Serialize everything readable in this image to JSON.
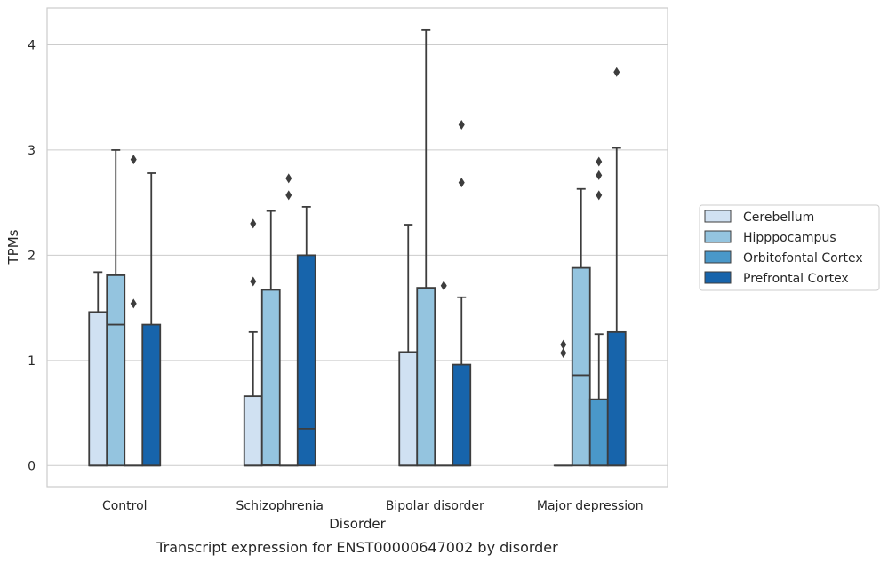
{
  "chart_data": {
    "type": "boxplot",
    "caption": "Transcript expression for ENST00000647002 by disorder",
    "xlabel": "Disorder",
    "ylabel": "TPMs",
    "ylim": [
      -0.2,
      4.35
    ],
    "yticks": [
      0,
      1,
      2,
      3,
      4
    ],
    "categories": [
      "Control",
      "Schizophrenia",
      "Bipolar disorder",
      "Major depression"
    ],
    "legend_position": "right",
    "grid": "horizontal",
    "series": [
      {
        "name": "Cerebellum",
        "color": "#d0e1f2",
        "boxes": [
          {
            "q1": 0,
            "median": 0,
            "q3": 1.46,
            "whisker_low": 0,
            "whisker_high": 1.84,
            "outliers": []
          },
          {
            "q1": 0,
            "median": 0,
            "q3": 0.66,
            "whisker_low": 0,
            "whisker_high": 1.27,
            "outliers": [
              1.75,
              2.3
            ]
          },
          {
            "q1": 0,
            "median": 0,
            "q3": 1.08,
            "whisker_low": 0,
            "whisker_high": 2.29,
            "outliers": []
          },
          {
            "q1": 0,
            "median": 0,
            "q3": 0,
            "whisker_low": 0,
            "whisker_high": 0,
            "outliers": [
              1.07,
              1.15
            ]
          }
        ]
      },
      {
        "name": "Hipppocampus",
        "color": "#94c4df",
        "boxes": [
          {
            "q1": 0,
            "median": 1.34,
            "q3": 1.81,
            "whisker_low": 0,
            "whisker_high": 3.0,
            "outliers": []
          },
          {
            "q1": 0,
            "median": 0.01,
            "q3": 1.67,
            "whisker_low": 0,
            "whisker_high": 2.42,
            "outliers": []
          },
          {
            "q1": 0,
            "median": 0,
            "q3": 1.69,
            "whisker_low": 0,
            "whisker_high": 4.14,
            "outliers": []
          },
          {
            "q1": 0,
            "median": 0.86,
            "q3": 1.88,
            "whisker_low": 0,
            "whisker_high": 2.63,
            "outliers": []
          }
        ]
      },
      {
        "name": "Orbitofontal Cortex",
        "color": "#4a98c9",
        "boxes": [
          {
            "q1": 0,
            "median": 0,
            "q3": 0,
            "whisker_low": 0,
            "whisker_high": 0,
            "outliers": [
              1.54,
              2.91
            ]
          },
          {
            "q1": 0,
            "median": 0,
            "q3": 0,
            "whisker_low": 0,
            "whisker_high": 0,
            "outliers": [
              2.57,
              2.73
            ]
          },
          {
            "q1": 0,
            "median": 0,
            "q3": 0,
            "whisker_low": 0,
            "whisker_high": 0,
            "outliers": [
              1.71
            ]
          },
          {
            "q1": 0,
            "median": 0,
            "q3": 0.63,
            "whisker_low": 0,
            "whisker_high": 1.25,
            "outliers": [
              2.57,
              2.76,
              2.89
            ]
          }
        ]
      },
      {
        "name": "Prefrontal Cortex",
        "color": "#1764ab",
        "boxes": [
          {
            "q1": 0,
            "median": 0,
            "q3": 1.34,
            "whisker_low": 0,
            "whisker_high": 2.78,
            "outliers": []
          },
          {
            "q1": 0,
            "median": 0.35,
            "q3": 2.0,
            "whisker_low": 0,
            "whisker_high": 2.46,
            "outliers": []
          },
          {
            "q1": 0,
            "median": 0,
            "q3": 0.96,
            "whisker_low": 0,
            "whisker_high": 1.6,
            "outliers": [
              2.69,
              3.24
            ]
          },
          {
            "q1": 0,
            "median": 0,
            "q3": 1.27,
            "whisker_low": 0,
            "whisker_high": 3.02,
            "outliers": [
              3.74
            ]
          }
        ]
      }
    ]
  }
}
